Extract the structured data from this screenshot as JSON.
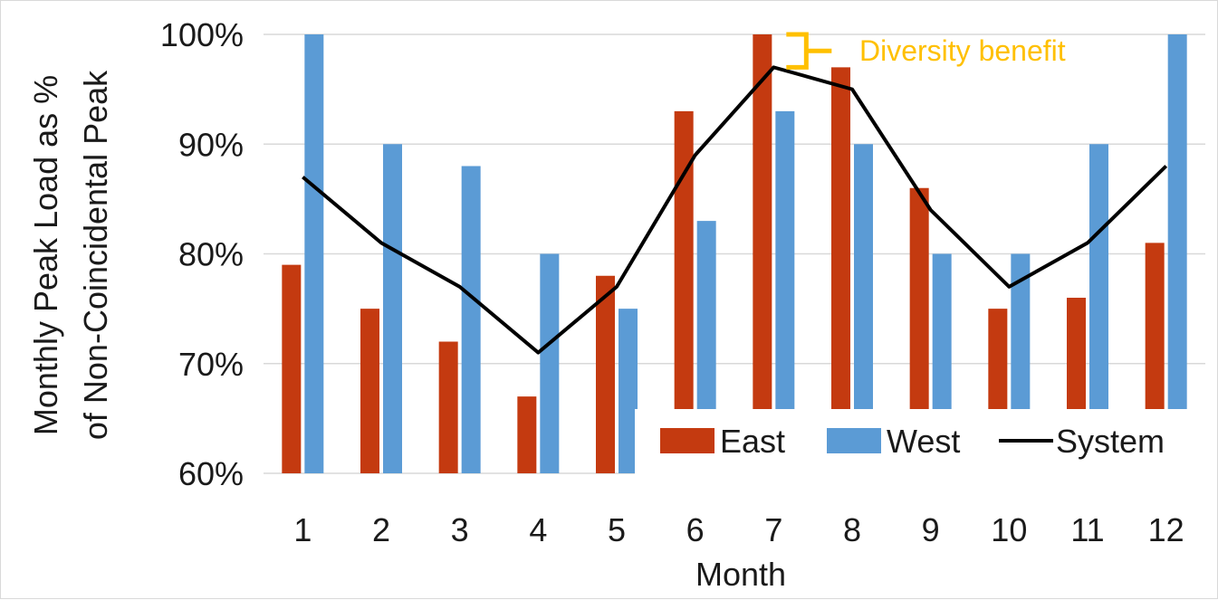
{
  "chart_data": {
    "type": "bar",
    "title": "",
    "xlabel": "Month",
    "ylabel": "Monthly Peak Load as %",
    "ylabel_line2": "of Non-Coincidental Peak",
    "categories": [
      "1",
      "2",
      "3",
      "4",
      "5",
      "6",
      "7",
      "8",
      "9",
      "10",
      "11",
      "12"
    ],
    "ylim": [
      60,
      100
    ],
    "yticks": [
      60,
      70,
      80,
      90,
      100
    ],
    "ytick_labels": [
      "60%",
      "70%",
      "80%",
      "90%",
      "100%"
    ],
    "grid": true,
    "legend_position": "bottom-right",
    "series": [
      {
        "name": "East",
        "kind": "bar",
        "color": "#C43A10",
        "values": [
          79,
          75,
          72,
          67,
          78,
          93,
          100,
          97,
          86,
          75,
          76,
          81
        ]
      },
      {
        "name": "West",
        "kind": "bar",
        "color": "#5B9BD5",
        "values": [
          100,
          90,
          88,
          80,
          75,
          83,
          93,
          90,
          80,
          80,
          90,
          100
        ]
      },
      {
        "name": "System",
        "kind": "line",
        "color": "#000000",
        "values": [
          87,
          81,
          77,
          71,
          77,
          89,
          97,
          95,
          84,
          77,
          81,
          88
        ]
      }
    ],
    "annotation": {
      "text": "Diversity benefit",
      "color": "#FFC000",
      "month": "7",
      "from": 97,
      "to": 100
    }
  }
}
